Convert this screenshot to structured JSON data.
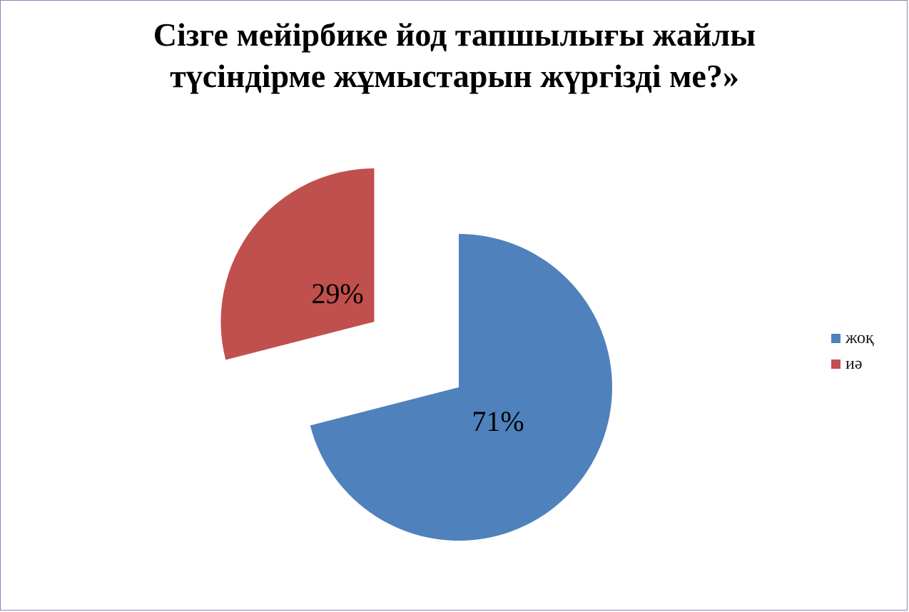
{
  "chart_data": {
    "type": "pie",
    "title_lines": [
      "Сізге мейірбике йод тапшылығы жайлы",
      "түсіндірме жұмыстарын жүргізді ме?»"
    ],
    "categories": [
      "жоқ",
      "иә"
    ],
    "values": [
      71,
      29
    ],
    "data_labels": [
      "71%",
      "29%"
    ],
    "colors": [
      "#4f81bd",
      "#c0504d"
    ],
    "exploded": true,
    "legend_position": "right"
  }
}
